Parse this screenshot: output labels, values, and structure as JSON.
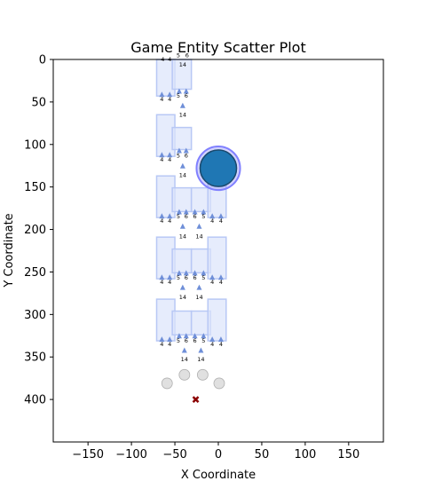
{
  "chart_data": {
    "type": "scatter",
    "title": "Game Entity Scatter Plot",
    "xlabel": "X Coordinate",
    "ylabel": "Y Coordinate",
    "xlim": [
      -190,
      190
    ],
    "ylim": [
      450,
      0
    ],
    "y_inverted": true,
    "grid": false,
    "x_ticks": [
      -150,
      -100,
      -50,
      0,
      50,
      100,
      150
    ],
    "y_ticks": [
      0,
      50,
      100,
      150,
      200,
      250,
      300,
      350,
      400
    ],
    "colors": {
      "block_fill": "#dbe4fb",
      "block_stroke": "#b8c8f5",
      "triangle": "#6f8fd8",
      "player_fill": "#1f77b4",
      "player_ring": "#8080ff",
      "ghost": "#cccccc",
      "marker_x": "#8b0000"
    },
    "series": [
      {
        "label_rows": [
          {
            "y": -6,
            "labels": [
              {
                "x": -46,
                "text": "5"
              },
              {
                "x": -36,
                "text": "6"
              }
            ]
          },
          {
            "y": -1,
            "labels": [
              {
                "x": -64,
                "text": "4"
              },
              {
                "x": -56,
                "text": "4"
              }
            ]
          },
          {
            "y": 5,
            "labels": [
              {
                "x": -41,
                "text": "14"
              }
            ]
          },
          {
            "y": 46,
            "labels": [
              {
                "x": -65,
                "text": "4"
              },
              {
                "x": -56,
                "text": "4"
              }
            ]
          },
          {
            "y": 42,
            "labels": [
              {
                "x": -46,
                "text": "5"
              },
              {
                "x": -37,
                "text": "6"
              }
            ]
          },
          {
            "y": 64,
            "labels": [
              {
                "x": -41,
                "text": "14"
              }
            ]
          },
          {
            "y": 117,
            "labels": [
              {
                "x": -65,
                "text": "4"
              },
              {
                "x": -56,
                "text": "4"
              }
            ]
          },
          {
            "y": 112,
            "labels": [
              {
                "x": -46,
                "text": "5"
              },
              {
                "x": -37,
                "text": "6"
              }
            ]
          },
          {
            "y": 135,
            "labels": [
              {
                "x": -41,
                "text": "14"
              }
            ]
          },
          {
            "y": 189,
            "labels": [
              {
                "x": -65,
                "text": "4"
              },
              {
                "x": -56,
                "text": "4"
              },
              {
                "x": -7,
                "text": "4"
              },
              {
                "x": 3,
                "text": "4"
              }
            ]
          },
          {
            "y": 184,
            "labels": [
              {
                "x": -46,
                "text": "5"
              },
              {
                "x": -37,
                "text": "6"
              },
              {
                "x": -27,
                "text": "6"
              },
              {
                "x": -17,
                "text": "5"
              }
            ]
          },
          {
            "y": 207,
            "labels": [
              {
                "x": -41,
                "text": "14"
              },
              {
                "x": -22,
                "text": "14"
              }
            ]
          },
          {
            "y": 261,
            "labels": [
              {
                "x": -65,
                "text": "4"
              },
              {
                "x": -56,
                "text": "4"
              },
              {
                "x": -7,
                "text": "4"
              },
              {
                "x": 3,
                "text": "4"
              }
            ]
          },
          {
            "y": 256,
            "labels": [
              {
                "x": -46,
                "text": "5"
              },
              {
                "x": -37,
                "text": "6"
              },
              {
                "x": -27,
                "text": "6"
              },
              {
                "x": -17,
                "text": "5"
              }
            ]
          },
          {
            "y": 279,
            "labels": [
              {
                "x": -41,
                "text": "14"
              },
              {
                "x": -22,
                "text": "14"
              }
            ]
          },
          {
            "y": 334,
            "labels": [
              {
                "x": -65,
                "text": "4"
              },
              {
                "x": -56,
                "text": "4"
              },
              {
                "x": -7,
                "text": "4"
              },
              {
                "x": 3,
                "text": "4"
              }
            ]
          },
          {
            "y": 330,
            "labels": [
              {
                "x": -46,
                "text": "5"
              },
              {
                "x": -37,
                "text": "6"
              },
              {
                "x": -27,
                "text": "6"
              },
              {
                "x": -17,
                "text": "5"
              }
            ]
          },
          {
            "y": 352,
            "labels": [
              {
                "x": -39,
                "text": "14"
              },
              {
                "x": -20,
                "text": "14"
              }
            ]
          }
        ],
        "blocks": [
          {
            "x0": -71,
            "x1": -50,
            "y0": 0,
            "y1": 43
          },
          {
            "x0": -53,
            "x1": -31,
            "y0": 0,
            "y1": 35
          },
          {
            "x0": -71,
            "x1": -50,
            "y0": 65,
            "y1": 114
          },
          {
            "x0": -53,
            "x1": -31,
            "y0": 80,
            "y1": 106
          },
          {
            "x0": -71,
            "x1": -50,
            "y0": 137,
            "y1": 186
          },
          {
            "x0": -53,
            "x1": -31,
            "y0": 151,
            "y1": 179
          },
          {
            "x0": -31,
            "x1": -9,
            "y0": 151,
            "y1": 179
          },
          {
            "x0": -12,
            "x1": 9,
            "y0": 137,
            "y1": 186
          },
          {
            "x0": -71,
            "x1": -50,
            "y0": 209,
            "y1": 258
          },
          {
            "x0": -53,
            "x1": -31,
            "y0": 223,
            "y1": 251
          },
          {
            "x0": -31,
            "x1": -9,
            "y0": 223,
            "y1": 251
          },
          {
            "x0": -12,
            "x1": 9,
            "y0": 209,
            "y1": 258
          },
          {
            "x0": -71,
            "x1": -50,
            "y0": 282,
            "y1": 331
          },
          {
            "x0": -53,
            "x1": -31,
            "y0": 296,
            "y1": 324
          },
          {
            "x0": -31,
            "x1": -9,
            "y0": 296,
            "y1": 324
          },
          {
            "x0": -12,
            "x1": 9,
            "y0": 282,
            "y1": 331
          }
        ],
        "triangles": [
          {
            "x": -65,
            "y": 41
          },
          {
            "x": -56,
            "y": 41
          },
          {
            "x": -45,
            "y": 37
          },
          {
            "x": -37,
            "y": 37
          },
          {
            "x": -41,
            "y": 54
          },
          {
            "x": -65,
            "y": 112
          },
          {
            "x": -56,
            "y": 112
          },
          {
            "x": -45,
            "y": 107
          },
          {
            "x": -37,
            "y": 107
          },
          {
            "x": -41,
            "y": 125
          },
          {
            "x": -65,
            "y": 184
          },
          {
            "x": -56,
            "y": 184
          },
          {
            "x": -45,
            "y": 179
          },
          {
            "x": -37,
            "y": 179
          },
          {
            "x": -27,
            "y": 179
          },
          {
            "x": -17,
            "y": 179
          },
          {
            "x": -7,
            "y": 184
          },
          {
            "x": 3,
            "y": 184
          },
          {
            "x": -41,
            "y": 196
          },
          {
            "x": -22,
            "y": 196
          },
          {
            "x": -65,
            "y": 256
          },
          {
            "x": -56,
            "y": 256
          },
          {
            "x": -45,
            "y": 251
          },
          {
            "x": -37,
            "y": 251
          },
          {
            "x": -27,
            "y": 251
          },
          {
            "x": -17,
            "y": 251
          },
          {
            "x": -7,
            "y": 256
          },
          {
            "x": 3,
            "y": 256
          },
          {
            "x": -41,
            "y": 268
          },
          {
            "x": -22,
            "y": 268
          },
          {
            "x": -65,
            "y": 329
          },
          {
            "x": -56,
            "y": 329
          },
          {
            "x": -45,
            "y": 325
          },
          {
            "x": -37,
            "y": 325
          },
          {
            "x": -27,
            "y": 325
          },
          {
            "x": -17,
            "y": 325
          },
          {
            "x": -7,
            "y": 329
          },
          {
            "x": 3,
            "y": 329
          },
          {
            "x": -39,
            "y": 342
          },
          {
            "x": -20,
            "y": 342
          }
        ],
        "player": {
          "x": 0,
          "y": 128,
          "r": 22
        },
        "ghosts": [
          {
            "x": -59,
            "y": 381
          },
          {
            "x": -39,
            "y": 371
          },
          {
            "x": -18,
            "y": 371
          },
          {
            "x": 1,
            "y": 381
          }
        ],
        "marker_x": {
          "x": -26,
          "y": 400
        }
      }
    ]
  }
}
